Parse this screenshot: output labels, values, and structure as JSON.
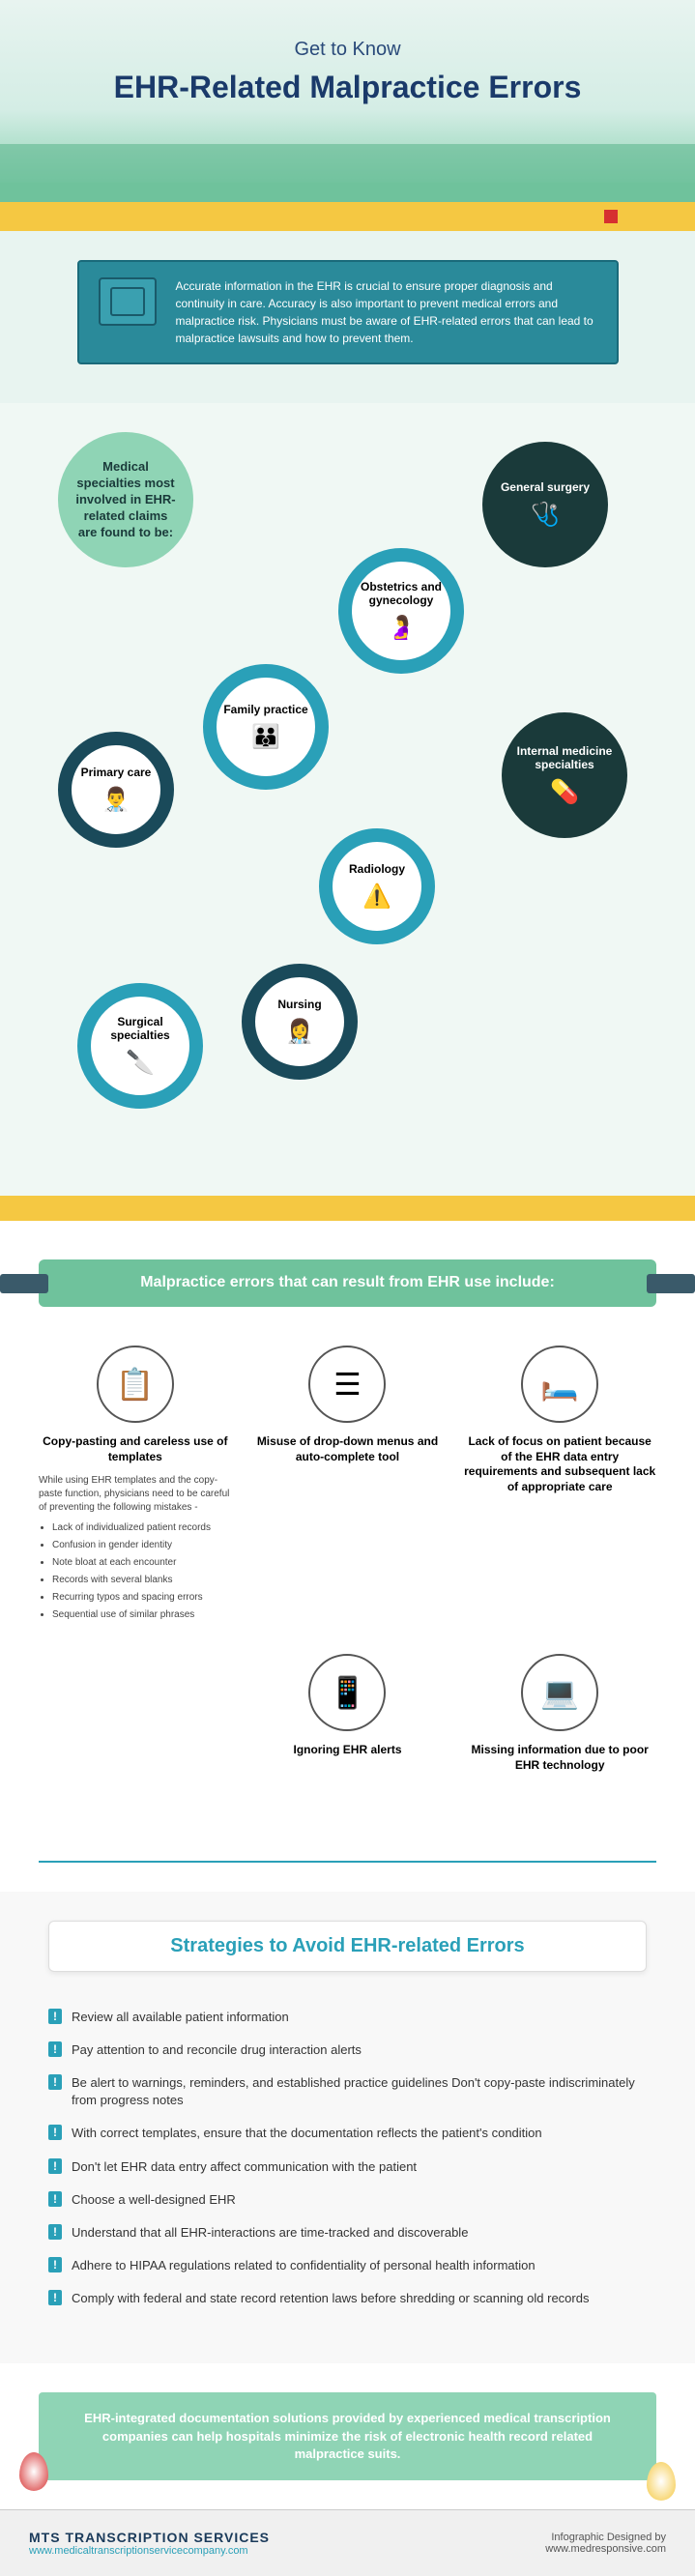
{
  "header": {
    "pretitle": "Get to Know",
    "title": "EHR-Related Malpractice Errors"
  },
  "intro": {
    "text": "Accurate information in the EHR is crucial to ensure proper diagnosis and continuity in care. Accuracy is also important to prevent medical errors and malpractice risk. Physicians must be aware of EHR-related errors that can lead to malpractice lawsuits and how to prevent them."
  },
  "specialties": {
    "intro": "Medical specialties most involved in EHR-related claims are found to be:",
    "items": {
      "general_surgery": "General surgery",
      "obgyn": "Obstetrics and gynecology",
      "family": "Family practice",
      "primary": "Primary care",
      "internal": "Internal medicine specialties",
      "radiology": "Radiology",
      "nursing": "Nursing",
      "surgical": "Surgical specialties"
    }
  },
  "errors": {
    "banner": "Malpractice errors that can result from EHR use include:",
    "items": [
      {
        "title": "Copy-pasting and careless use of templates",
        "desc": "While using EHR templates and the copy-paste function, physicians need to be careful of preventing the following mistakes -",
        "bullets": [
          "Lack of individualized patient records",
          "Confusion in gender identity",
          "Note bloat at each encounter",
          "Records with several blanks",
          "Recurring typos and spacing errors",
          "Sequential use of similar phrases"
        ]
      },
      {
        "title": "Misuse of drop-down menus and auto-complete tool"
      },
      {
        "title": "Lack of focus on patient because of the EHR data entry requirements and subsequent lack of appropriate care"
      },
      {
        "title": "Ignoring EHR alerts"
      },
      {
        "title": "Missing information due to poor EHR technology"
      }
    ]
  },
  "strategies": {
    "title": "Strategies to Avoid EHR-related Errors",
    "list": [
      "Review all available patient information",
      "Pay attention to and reconcile drug interaction alerts",
      "Be alert to warnings, reminders, and established practice guidelines Don't copy-paste indiscriminately from progress notes",
      "With correct templates, ensure that the documentation reflects the patient's condition",
      "Don't let EHR data entry affect communication with the patient",
      "Choose a well-designed EHR",
      "Understand that all EHR-interactions are time-tracked and discoverable",
      "Adhere to HIPAA regulations related to confidentiality of personal health information",
      "Comply with federal and state record retention laws before shredding or scanning old records"
    ]
  },
  "caption": "EHR-integrated documentation solutions provided by experienced medical transcription companies can help hospitals minimize the risk of electronic health record related malpractice suits.",
  "footer": {
    "brand": "MTS TRANSCRIPTION SERVICES",
    "url": "www.medicaltranscriptionservicecompany.com",
    "designed_label": "Infographic Designed by",
    "designed_url": "www.medresponsive.com"
  },
  "colors": {
    "teal": "#2aa0b8",
    "dark_teal": "#1a4a5a",
    "green": "#6fc29c",
    "light_green": "#8fd4b5",
    "dark_blue": "#1a3a6a",
    "yellow": "#f5c842"
  }
}
